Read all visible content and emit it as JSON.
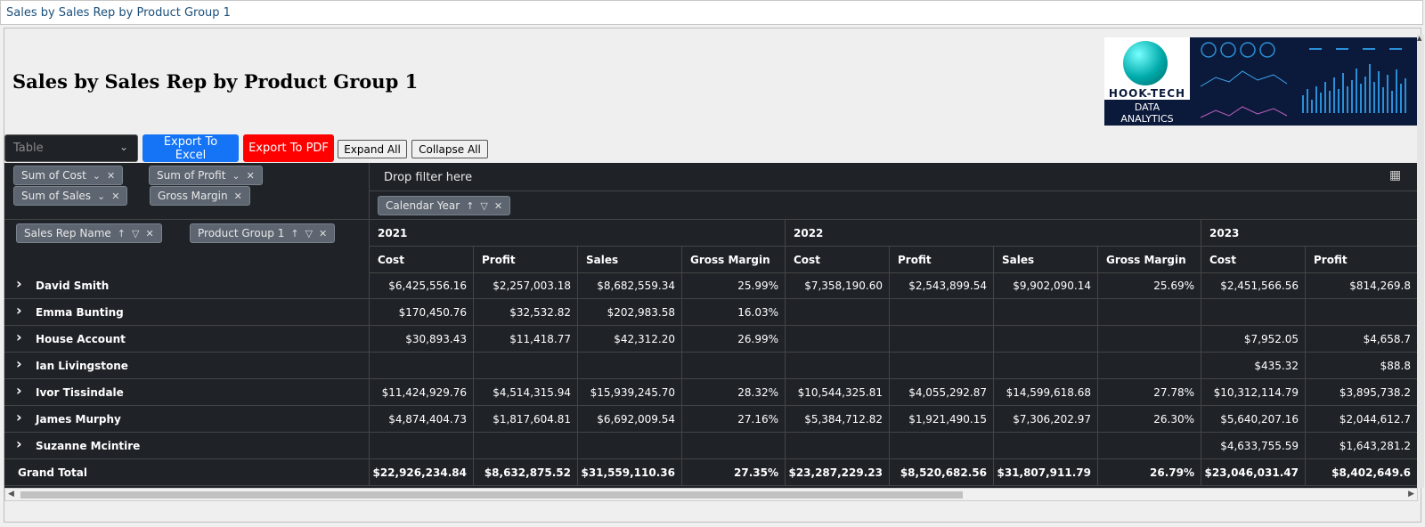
{
  "window": {
    "title": "Sales by Sales Rep by Product Group 1"
  },
  "page": {
    "title": "Sales by Sales Rep by Product Group 1"
  },
  "logo": {
    "brand": "HOOK-TECH",
    "url": "www.hook-tech.com",
    "line1": "DATA",
    "line2": "ANALYTICS"
  },
  "toolbar": {
    "view_select_value": "Table",
    "export_excel_label": "Export To Excel",
    "export_pdf_label": "Export To PDF",
    "expand_all_label": "Expand All",
    "collapse_all_label": "Collapse All",
    "export_excel_color": "#1474f5",
    "export_pdf_color": "#ff0000"
  },
  "pivot": {
    "measures": [
      "Sum of Cost",
      "Sum of Profit",
      "Sum of Sales",
      "Gross Margin"
    ],
    "filter_placeholder": "Drop filter here",
    "column_field": "Calendar Year",
    "row_fields": [
      "Sales Rep Name",
      "Product Group 1"
    ],
    "years": [
      "2021",
      "2022",
      "2023"
    ],
    "measure_headers": [
      "Cost",
      "Profit",
      "Sales",
      "Gross Margin",
      "Cost",
      "Profit",
      "Sales",
      "Gross Margin",
      "Cost",
      "Profit"
    ],
    "rows": [
      {
        "name": "David Smith",
        "values": [
          "$6,425,556.16",
          "$2,257,003.18",
          "$8,682,559.34",
          "25.99%",
          "$7,358,190.60",
          "$2,543,899.54",
          "$9,902,090.14",
          "25.69%",
          "$2,451,566.56",
          "$814,269.8"
        ]
      },
      {
        "name": "Emma Bunting",
        "values": [
          "$170,450.76",
          "$32,532.82",
          "$202,983.58",
          "16.03%",
          "",
          "",
          "",
          "",
          "",
          ""
        ]
      },
      {
        "name": "House Account",
        "values": [
          "$30,893.43",
          "$11,418.77",
          "$42,312.20",
          "26.99%",
          "",
          "",
          "",
          "",
          "$7,952.05",
          "$4,658.7"
        ]
      },
      {
        "name": "Ian Livingstone",
        "values": [
          "",
          "",
          "",
          "",
          "",
          "",
          "",
          "",
          "$435.32",
          "$88.8"
        ]
      },
      {
        "name": "Ivor Tissindale",
        "values": [
          "$11,424,929.76",
          "$4,514,315.94",
          "$15,939,245.70",
          "28.32%",
          "$10,544,325.81",
          "$4,055,292.87",
          "$14,599,618.68",
          "27.78%",
          "$10,312,114.79",
          "$3,895,738.2"
        ]
      },
      {
        "name": "James Murphy",
        "values": [
          "$4,874,404.73",
          "$1,817,604.81",
          "$6,692,009.54",
          "27.16%",
          "$5,384,712.82",
          "$1,921,490.15",
          "$7,306,202.97",
          "26.30%",
          "$5,640,207.16",
          "$2,044,612.7"
        ]
      },
      {
        "name": "Suzanne Mcintire",
        "values": [
          "",
          "",
          "",
          "",
          "",
          "",
          "",
          "",
          "$4,633,755.59",
          "$1,643,281.2"
        ]
      }
    ],
    "grand_total": {
      "label": "Grand Total",
      "values": [
        "$22,926,234.84",
        "$8,632,875.52",
        "$31,559,110.36",
        "27.35%",
        "$23,287,229.23",
        "$8,520,682.56",
        "$31,807,911.79",
        "26.79%",
        "$23,046,031.47",
        "$8,402,649.6"
      ]
    }
  }
}
